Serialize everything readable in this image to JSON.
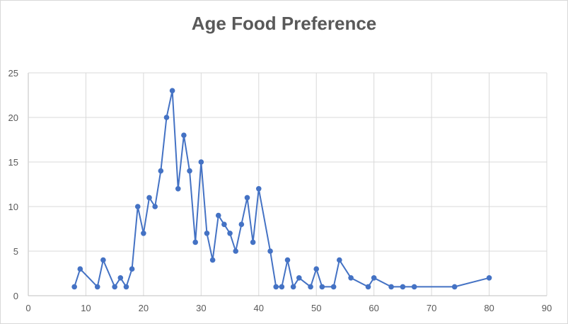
{
  "chart_data": {
    "type": "scatter",
    "title": "Age Food Preference",
    "xlabel": "",
    "ylabel": "",
    "xlim": [
      0,
      90
    ],
    "ylim": [
      0,
      25
    ],
    "x_ticks": [
      0,
      10,
      20,
      30,
      40,
      50,
      60,
      70,
      80,
      90
    ],
    "y_ticks": [
      0,
      5,
      10,
      15,
      20,
      25
    ],
    "grid": true,
    "legend": "none",
    "series": [
      {
        "color": "#4472c4",
        "lines": true,
        "markers": true,
        "points": [
          [
            8,
            1
          ],
          [
            9,
            3
          ],
          [
            12,
            1
          ],
          [
            13,
            4
          ],
          [
            15,
            1
          ],
          [
            16,
            2
          ],
          [
            17,
            1
          ],
          [
            18,
            3
          ],
          [
            19,
            10
          ],
          [
            20,
            7
          ],
          [
            21,
            11
          ],
          [
            22,
            10
          ],
          [
            23,
            14
          ],
          [
            24,
            20
          ],
          [
            25,
            23
          ],
          [
            26,
            12
          ],
          [
            27,
            18
          ],
          [
            28,
            14
          ],
          [
            29,
            6
          ],
          [
            30,
            15
          ],
          [
            31,
            7
          ],
          [
            32,
            4
          ],
          [
            33,
            9
          ],
          [
            34,
            8
          ],
          [
            35,
            7
          ],
          [
            36,
            5
          ],
          [
            37,
            8
          ],
          [
            38,
            11
          ],
          [
            39,
            6
          ],
          [
            40,
            12
          ],
          [
            42,
            5
          ],
          [
            43,
            1
          ],
          [
            44,
            1
          ],
          [
            45,
            4
          ],
          [
            46,
            1
          ],
          [
            47,
            2
          ],
          [
            49,
            1
          ],
          [
            50,
            3
          ],
          [
            51,
            1
          ],
          [
            53,
            1
          ],
          [
            54,
            4
          ],
          [
            56,
            2
          ],
          [
            59,
            1
          ],
          [
            60,
            2
          ],
          [
            63,
            1
          ],
          [
            65,
            1
          ],
          [
            67,
            1
          ],
          [
            74,
            1
          ],
          [
            80,
            2
          ]
        ]
      }
    ]
  }
}
